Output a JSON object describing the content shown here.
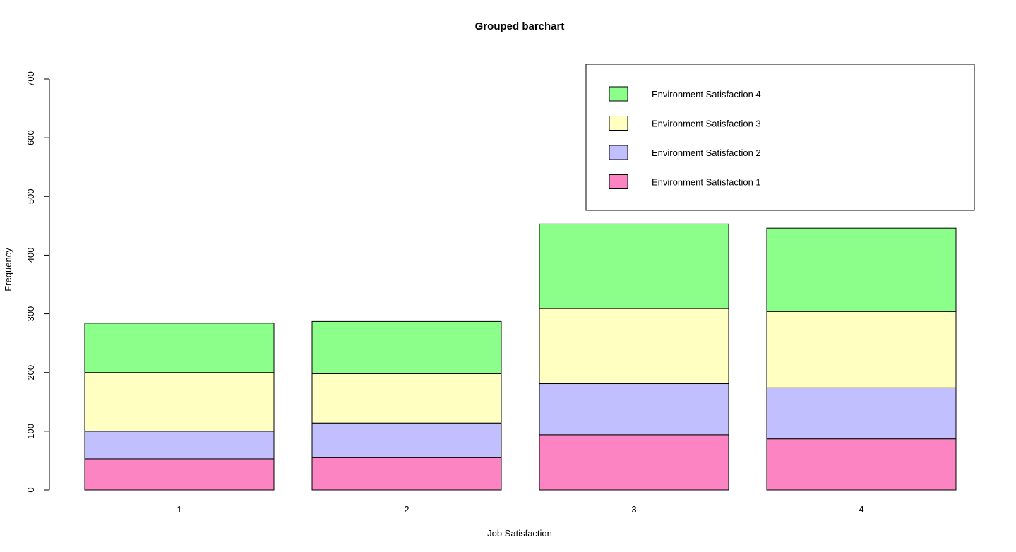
{
  "chart_data": {
    "type": "bar",
    "stacked": true,
    "title": "Grouped barchart",
    "xlabel": "Job Satisfaction",
    "ylabel": "Frequency",
    "categories": [
      "1",
      "2",
      "3",
      "4"
    ],
    "ylim": [
      0,
      700
    ],
    "yticks": [
      0,
      100,
      200,
      300,
      400,
      500,
      600,
      700
    ],
    "grid": false,
    "legend_position": "top-right",
    "series": [
      {
        "name": "Environment Satisfaction 1",
        "color": "#FC84C3",
        "values": [
          53,
          55,
          94,
          87
        ]
      },
      {
        "name": "Environment Satisfaction 2",
        "color": "#C2BFFF",
        "values": [
          47,
          59,
          87,
          87
        ]
      },
      {
        "name": "Environment Satisfaction 3",
        "color": "#FFFFC2",
        "values": [
          100,
          84,
          128,
          130
        ]
      },
      {
        "name": "Environment Satisfaction 4",
        "color": "#8CFF8A",
        "values": [
          84,
          89,
          144,
          142
        ]
      }
    ]
  }
}
